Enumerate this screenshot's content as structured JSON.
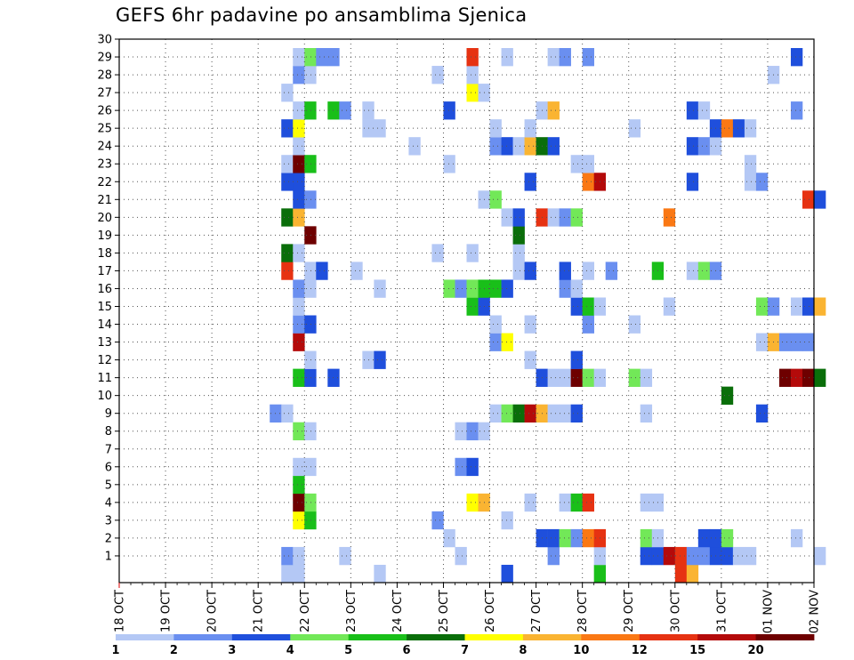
{
  "chart_data": {
    "type": "heatmap",
    "title": "GEFS 6hr padavine po ansamblima Sjenica",
    "x_tick_labels": [
      "18 OCT",
      "19 OCT",
      "20 OCT",
      "21 OCT",
      "22 OCT",
      "23 OCT",
      "24 OCT",
      "25 OCT",
      "26 OCT",
      "27 OCT",
      "28 OCT",
      "29 OCT",
      "30 OCT",
      "31 OCT",
      "01 NOV",
      "02 NOV"
    ],
    "y_tick_labels": [
      "1",
      "2",
      "3",
      "4",
      "5",
      "6",
      "7",
      "8",
      "9",
      "10",
      "11",
      "12",
      "13",
      "14",
      "15",
      "16",
      "17",
      "18",
      "19",
      "20",
      "21",
      "22",
      "23",
      "24",
      "25",
      "26",
      "27",
      "28",
      "29",
      "30"
    ],
    "members": 30,
    "time_step_hours": 6,
    "grid": "dotted",
    "colorbar": {
      "levels": [
        1,
        2,
        3,
        4,
        5,
        6,
        7,
        8,
        10,
        12,
        15,
        20
      ],
      "labels": [
        "1",
        "2",
        "3",
        "4",
        "5",
        "6",
        "7",
        "8",
        "10",
        "12",
        "15",
        "20"
      ],
      "colors": [
        "#b4c8f5",
        "#6a8ff0",
        "#1f4fdc",
        "#72e858",
        "#19bf19",
        "#0a6e0a",
        "#ffff00",
        "#fab432",
        "#fa7814",
        "#e63212",
        "#b40a0a",
        "#6e0000"
      ]
    },
    "cells": [
      [
        0,
        0,
        14,
        0
      ],
      [
        0,
        0,
        15,
        0
      ],
      [
        0,
        0,
        22,
        0
      ],
      [
        0,
        0,
        33,
        2
      ],
      [
        0,
        0,
        41,
        4
      ],
      [
        0,
        0,
        48,
        9
      ],
      [
        0,
        0,
        49,
        7
      ],
      [
        1,
        14,
        1
      ],
      [
        1,
        15,
        0
      ],
      [
        1,
        19,
        0
      ],
      [
        1,
        29,
        0
      ],
      [
        1,
        37,
        1
      ],
      [
        1,
        41,
        0
      ],
      [
        1,
        45,
        2
      ],
      [
        1,
        46,
        2
      ],
      [
        1,
        47,
        10
      ],
      [
        1,
        48,
        9
      ],
      [
        1,
        49,
        1
      ],
      [
        1,
        50,
        1
      ],
      [
        1,
        51,
        2
      ],
      [
        1,
        52,
        2
      ],
      [
        1,
        53,
        0
      ],
      [
        1,
        54,
        0
      ],
      [
        1,
        60,
        0
      ],
      [
        2,
        28,
        0
      ],
      [
        2,
        36,
        2
      ],
      [
        2,
        37,
        2
      ],
      [
        2,
        38,
        3
      ],
      [
        2,
        39,
        1
      ],
      [
        2,
        40,
        8
      ],
      [
        2,
        41,
        9
      ],
      [
        2,
        45,
        3
      ],
      [
        2,
        46,
        0
      ],
      [
        2,
        50,
        2
      ],
      [
        2,
        51,
        2
      ],
      [
        2,
        52,
        3
      ],
      [
        2,
        58,
        0
      ],
      [
        3,
        15,
        6
      ],
      [
        3,
        16,
        4
      ],
      [
        3,
        27,
        1
      ],
      [
        3,
        33,
        0
      ],
      [
        4,
        15,
        11
      ],
      [
        4,
        16,
        3
      ],
      [
        4,
        30,
        6
      ],
      [
        4,
        31,
        7
      ],
      [
        4,
        35,
        0
      ],
      [
        4,
        38,
        0
      ],
      [
        4,
        39,
        4
      ],
      [
        4,
        40,
        9
      ],
      [
        4,
        45,
        0
      ],
      [
        4,
        46,
        0
      ],
      [
        5,
        15,
        4
      ],
      [
        6,
        15,
        0
      ],
      [
        6,
        16,
        0
      ],
      [
        6,
        29,
        1
      ],
      [
        6,
        30,
        2
      ],
      [
        8,
        15,
        3
      ],
      [
        8,
        16,
        0
      ],
      [
        8,
        29,
        0
      ],
      [
        8,
        30,
        1
      ],
      [
        8,
        31,
        0
      ],
      [
        9,
        13,
        1
      ],
      [
        9,
        14,
        0
      ],
      [
        9,
        32,
        0
      ],
      [
        9,
        33,
        3
      ],
      [
        9,
        34,
        5
      ],
      [
        9,
        35,
        10
      ],
      [
        9,
        36,
        7
      ],
      [
        9,
        37,
        0
      ],
      [
        9,
        38,
        0
      ],
      [
        9,
        39,
        2
      ],
      [
        9,
        45,
        0
      ],
      [
        9,
        55,
        2
      ],
      [
        10,
        52,
        5
      ],
      [
        11,
        15,
        4
      ],
      [
        11,
        16,
        2
      ],
      [
        11,
        18,
        2
      ],
      [
        11,
        36,
        2
      ],
      [
        11,
        37,
        0
      ],
      [
        11,
        38,
        0
      ],
      [
        11,
        39,
        11
      ],
      [
        11,
        40,
        3
      ],
      [
        11,
        41,
        0
      ],
      [
        11,
        44,
        3
      ],
      [
        11,
        45,
        0
      ],
      [
        11,
        57,
        11
      ],
      [
        11,
        58,
        10
      ],
      [
        11,
        59,
        11
      ],
      [
        11,
        60,
        5
      ],
      [
        12,
        16,
        0
      ],
      [
        12,
        21,
        0
      ],
      [
        12,
        22,
        2
      ],
      [
        12,
        35,
        0
      ],
      [
        12,
        39,
        2
      ],
      [
        13,
        15,
        10
      ],
      [
        13,
        32,
        1
      ],
      [
        13,
        33,
        6
      ],
      [
        13,
        55,
        0
      ],
      [
        13,
        56,
        7
      ],
      [
        13,
        57,
        1
      ],
      [
        13,
        58,
        1
      ],
      [
        13,
        59,
        1
      ],
      [
        14,
        15,
        1
      ],
      [
        14,
        16,
        2
      ],
      [
        14,
        32,
        0
      ],
      [
        14,
        35,
        0
      ],
      [
        14,
        40,
        1
      ],
      [
        14,
        44,
        0
      ],
      [
        15,
        15,
        0
      ],
      [
        15,
        30,
        4
      ],
      [
        15,
        31,
        2
      ],
      [
        15,
        39,
        2
      ],
      [
        15,
        40,
        4
      ],
      [
        15,
        41,
        0
      ],
      [
        15,
        47,
        0
      ],
      [
        15,
        55,
        3
      ],
      [
        15,
        56,
        1
      ],
      [
        15,
        58,
        0
      ],
      [
        15,
        59,
        2
      ],
      [
        15,
        60,
        7
      ],
      [
        16,
        15,
        1
      ],
      [
        16,
        16,
        0
      ],
      [
        16,
        22,
        0
      ],
      [
        16,
        28,
        3
      ],
      [
        16,
        29,
        1
      ],
      [
        16,
        30,
        3
      ],
      [
        16,
        31,
        4
      ],
      [
        16,
        32,
        4
      ],
      [
        16,
        33,
        2
      ],
      [
        16,
        38,
        1
      ],
      [
        16,
        39,
        0
      ],
      [
        17,
        14,
        9
      ],
      [
        17,
        16,
        0
      ],
      [
        17,
        17,
        2
      ],
      [
        17,
        20,
        0
      ],
      [
        17,
        34,
        0
      ],
      [
        17,
        35,
        2
      ],
      [
        17,
        38,
        2
      ],
      [
        17,
        40,
        0
      ],
      [
        17,
        42,
        1
      ],
      [
        17,
        46,
        4
      ],
      [
        17,
        49,
        0
      ],
      [
        17,
        50,
        3
      ],
      [
        17,
        51,
        1
      ],
      [
        18,
        14,
        5
      ],
      [
        18,
        15,
        0
      ],
      [
        18,
        27,
        0
      ],
      [
        18,
        30,
        0
      ],
      [
        18,
        34,
        0
      ],
      [
        19,
        16,
        11
      ],
      [
        19,
        34,
        5
      ],
      [
        20,
        14,
        5
      ],
      [
        20,
        15,
        7
      ],
      [
        20,
        33,
        0
      ],
      [
        20,
        34,
        2
      ],
      [
        20,
        36,
        9
      ],
      [
        20,
        37,
        0
      ],
      [
        20,
        38,
        1
      ],
      [
        20,
        39,
        3
      ],
      [
        20,
        47,
        8
      ],
      [
        21,
        15,
        2
      ],
      [
        21,
        16,
        1
      ],
      [
        21,
        31,
        0
      ],
      [
        21,
        32,
        3
      ],
      [
        21,
        59,
        9
      ],
      [
        21,
        60,
        2
      ],
      [
        22,
        14,
        2
      ],
      [
        22,
        15,
        2
      ],
      [
        22,
        35,
        2
      ],
      [
        22,
        40,
        8
      ],
      [
        22,
        41,
        10
      ],
      [
        22,
        49,
        2
      ],
      [
        22,
        54,
        0
      ],
      [
        22,
        55,
        1
      ],
      [
        23,
        14,
        0
      ],
      [
        23,
        15,
        11
      ],
      [
        23,
        16,
        4
      ],
      [
        23,
        28,
        0
      ],
      [
        23,
        39,
        0
      ],
      [
        23,
        40,
        0
      ],
      [
        23,
        54,
        0
      ],
      [
        24,
        15,
        0
      ],
      [
        24,
        25,
        0
      ],
      [
        24,
        32,
        1
      ],
      [
        24,
        33,
        2
      ],
      [
        24,
        34,
        0
      ],
      [
        24,
        35,
        7
      ],
      [
        24,
        36,
        5
      ],
      [
        24,
        37,
        2
      ],
      [
        24,
        49,
        2
      ],
      [
        24,
        50,
        1
      ],
      [
        24,
        51,
        0
      ],
      [
        25,
        14,
        2
      ],
      [
        25,
        15,
        6
      ],
      [
        25,
        21,
        0
      ],
      [
        25,
        22,
        0
      ],
      [
        25,
        32,
        0
      ],
      [
        25,
        35,
        0
      ],
      [
        25,
        44,
        0
      ],
      [
        25,
        51,
        2
      ],
      [
        25,
        52,
        8
      ],
      [
        25,
        53,
        2
      ],
      [
        25,
        54,
        0
      ],
      [
        26,
        15,
        0
      ],
      [
        26,
        16,
        4
      ],
      [
        26,
        18,
        4
      ],
      [
        26,
        19,
        1
      ],
      [
        26,
        21,
        0
      ],
      [
        26,
        28,
        2
      ],
      [
        26,
        36,
        0
      ],
      [
        26,
        37,
        7
      ],
      [
        26,
        49,
        2
      ],
      [
        26,
        50,
        0
      ],
      [
        26,
        58,
        1
      ],
      [
        27,
        14,
        0
      ],
      [
        27,
        30,
        6
      ],
      [
        27,
        31,
        0
      ],
      [
        28,
        15,
        1
      ],
      [
        28,
        16,
        0
      ],
      [
        28,
        27,
        0
      ],
      [
        28,
        30,
        0
      ],
      [
        28,
        56,
        0
      ],
      [
        29,
        15,
        0
      ],
      [
        29,
        16,
        3
      ],
      [
        29,
        17,
        1
      ],
      [
        29,
        18,
        1
      ],
      [
        29,
        30,
        9
      ],
      [
        29,
        33,
        0
      ],
      [
        29,
        37,
        0
      ],
      [
        29,
        38,
        1
      ],
      [
        29,
        40,
        1
      ],
      [
        29,
        58,
        2
      ]
    ]
  }
}
